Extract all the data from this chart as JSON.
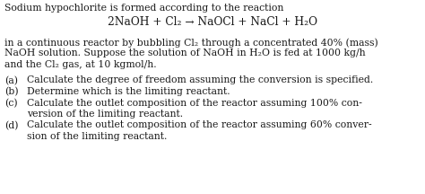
{
  "title": "Sodium hypochlorite is formed according to the reaction",
  "equation": "2NaOH + Cl₂ → NaOCl + NaCl + H₂O",
  "intro_line1": "in a continuous reactor by bubbling Cl₂ through a concentrated 40% (mass)",
  "intro_line2": "NaOH solution. Suppose the solution of NaOH in H₂O is fed at 1000 kg/h",
  "intro_line3": "and the Cl₂ gas, at 10 kgmol/h.",
  "part_a_label": "(a)",
  "part_a_text": "Calculate the degree of freedom assuming the conversion is specified.",
  "part_b_label": "(b)",
  "part_b_text": "Determine which is the limiting reactant.",
  "part_c_label": "(c)",
  "part_c_text1": "Calculate the outlet composition of the reactor assuming 100% con-",
  "part_c_text2": "version of the limiting reactant.",
  "part_d_label": "(d)",
  "part_d_text1": "Calculate the outlet composition of the reactor assuming 60% conver-",
  "part_d_text2": "sion of the limiting reactant.",
  "bg_color": "#ffffff",
  "text_color": "#1a1a1a",
  "font_size": 7.8,
  "font_size_eq": 8.8
}
